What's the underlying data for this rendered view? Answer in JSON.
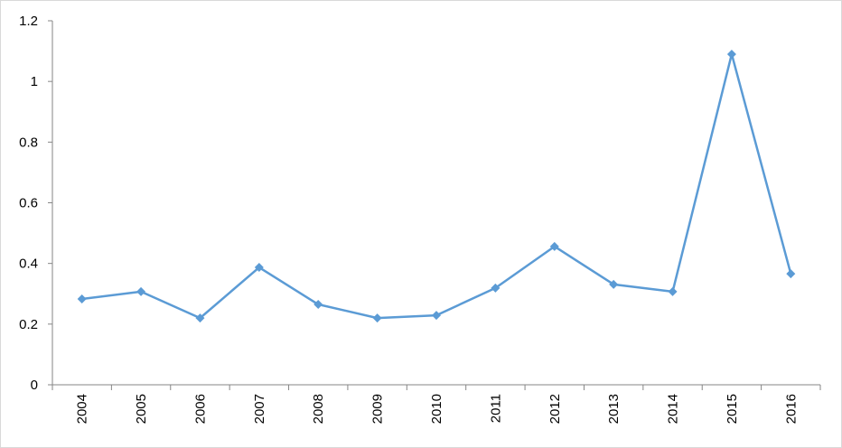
{
  "chart_data": {
    "type": "line",
    "categories": [
      "2004",
      "2005",
      "2006",
      "2007",
      "2008",
      "2009",
      "2010",
      "2011",
      "2012",
      "2013",
      "2014",
      "2015",
      "2016"
    ],
    "series": [
      {
        "color": "#5b9bd5",
        "values": [
          0.283,
          0.307,
          0.22,
          0.387,
          0.265,
          0.22,
          0.229,
          0.319,
          0.456,
          0.331,
          0.307,
          1.09,
          0.366
        ]
      }
    ],
    "ylim": [
      0,
      1.2
    ],
    "yticks": [
      0,
      0.2,
      0.4,
      0.6,
      0.8,
      1,
      1.2
    ],
    "grid": false,
    "marker": "diamond"
  }
}
